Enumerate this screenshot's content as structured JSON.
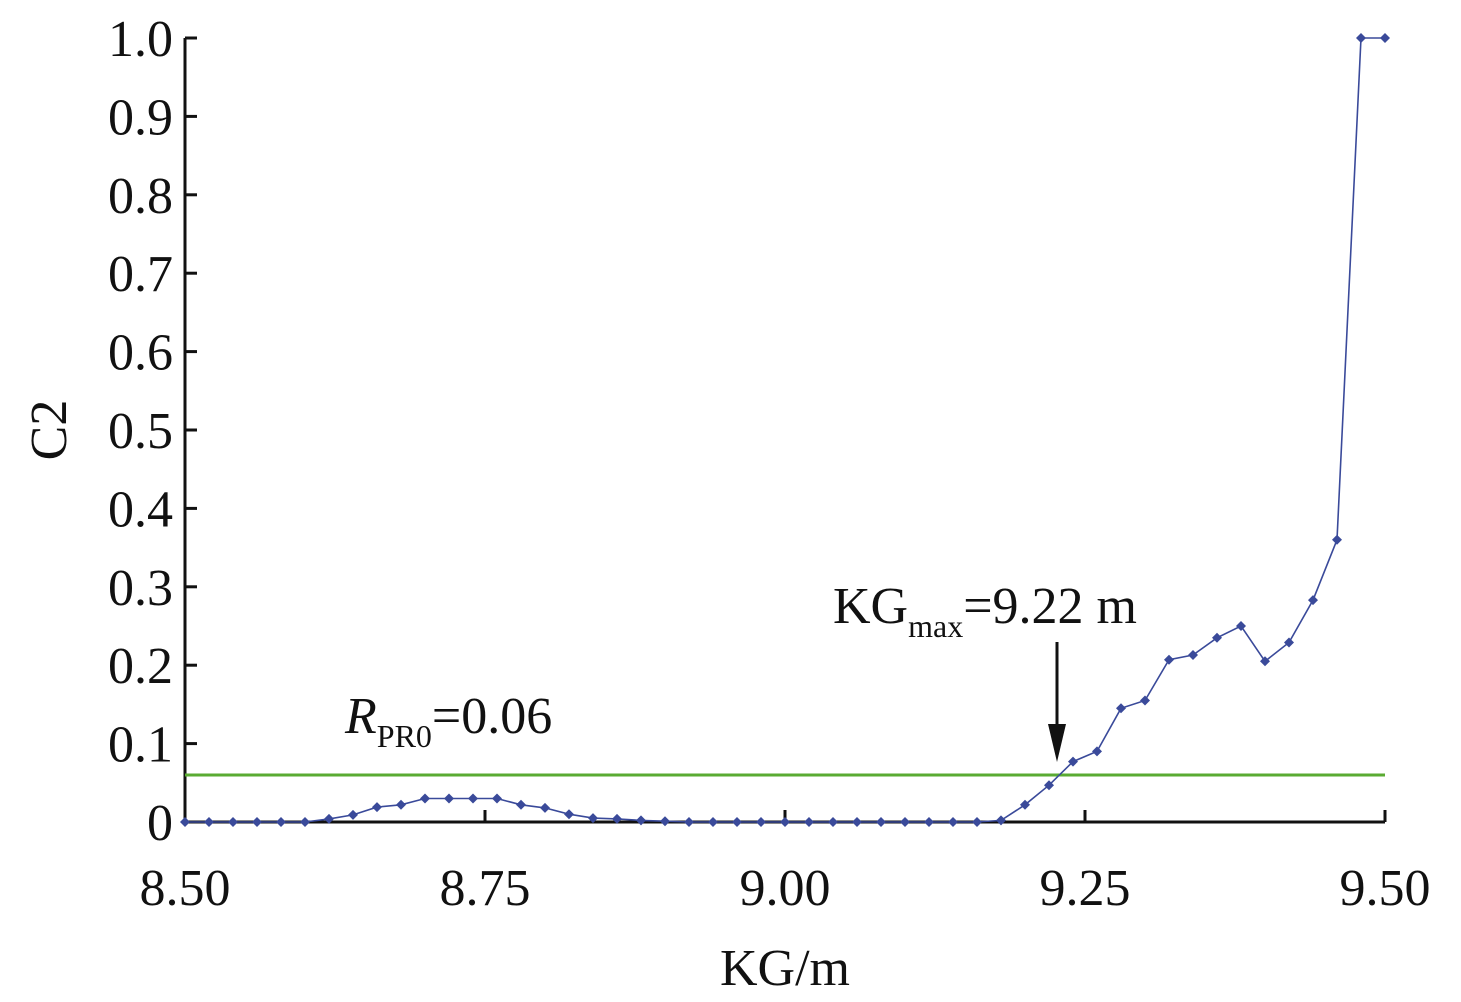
{
  "chart_data": {
    "type": "line",
    "xlabel": "KG/m",
    "ylabel": "C2",
    "xlim": [
      8.5,
      9.5
    ],
    "ylim": [
      0,
      1.0
    ],
    "x_ticks": [
      "8.50",
      "8.75",
      "9.00",
      "9.25",
      "9.50"
    ],
    "x_tick_values": [
      8.5,
      8.75,
      9.0,
      9.25,
      9.5
    ],
    "y_ticks": [
      "0",
      "0.1",
      "0.2",
      "0.3",
      "0.4",
      "0.5",
      "0.6",
      "0.7",
      "0.8",
      "0.9",
      "1.0"
    ],
    "y_tick_values": [
      0,
      0.1,
      0.2,
      0.3,
      0.4,
      0.5,
      0.6,
      0.7,
      0.8,
      0.9,
      1.0
    ],
    "grid": false,
    "series": [
      {
        "color": "#3a4a9a",
        "marker": "diamond",
        "x": [
          8.5,
          8.52,
          8.54,
          8.56,
          8.58,
          8.6,
          8.62,
          8.64,
          8.66,
          8.68,
          8.7,
          8.72,
          8.74,
          8.76,
          8.78,
          8.8,
          8.82,
          8.84,
          8.86,
          8.88,
          8.9,
          8.92,
          8.94,
          8.96,
          8.98,
          9.0,
          9.02,
          9.04,
          9.06,
          9.08,
          9.1,
          9.12,
          9.14,
          9.16,
          9.18,
          9.2,
          9.22,
          9.24,
          9.26,
          9.28,
          9.3,
          9.32,
          9.34,
          9.36,
          9.38,
          9.4,
          9.42,
          9.44,
          9.46,
          9.48,
          9.5
        ],
        "y": [
          0,
          0,
          0,
          0,
          0,
          0,
          0.004,
          0.009,
          0.019,
          0.022,
          0.03,
          0.03,
          0.03,
          0.03,
          0.022,
          0.018,
          0.01,
          0.005,
          0.004,
          0.002,
          0.001,
          0,
          0,
          0,
          0,
          0,
          0,
          0,
          0,
          0,
          0,
          0,
          0,
          0,
          0.002,
          0.022,
          0.047,
          0.077,
          0.09,
          0.145,
          0.155,
          0.207,
          0.213,
          0.235,
          0.25,
          0.205,
          0.229,
          0.283,
          0.36,
          1.0,
          1.0
        ]
      }
    ],
    "reference_line": {
      "y": 0.06,
      "color": "#5aab32"
    },
    "annotations": {
      "threshold": {
        "italic": "R",
        "subscript": "PR0",
        "text": "=0.06"
      },
      "kgmax": {
        "main": "KG",
        "subscript": "max",
        "text": "=9.22 m",
        "arrow_x": 9.22
      }
    }
  }
}
